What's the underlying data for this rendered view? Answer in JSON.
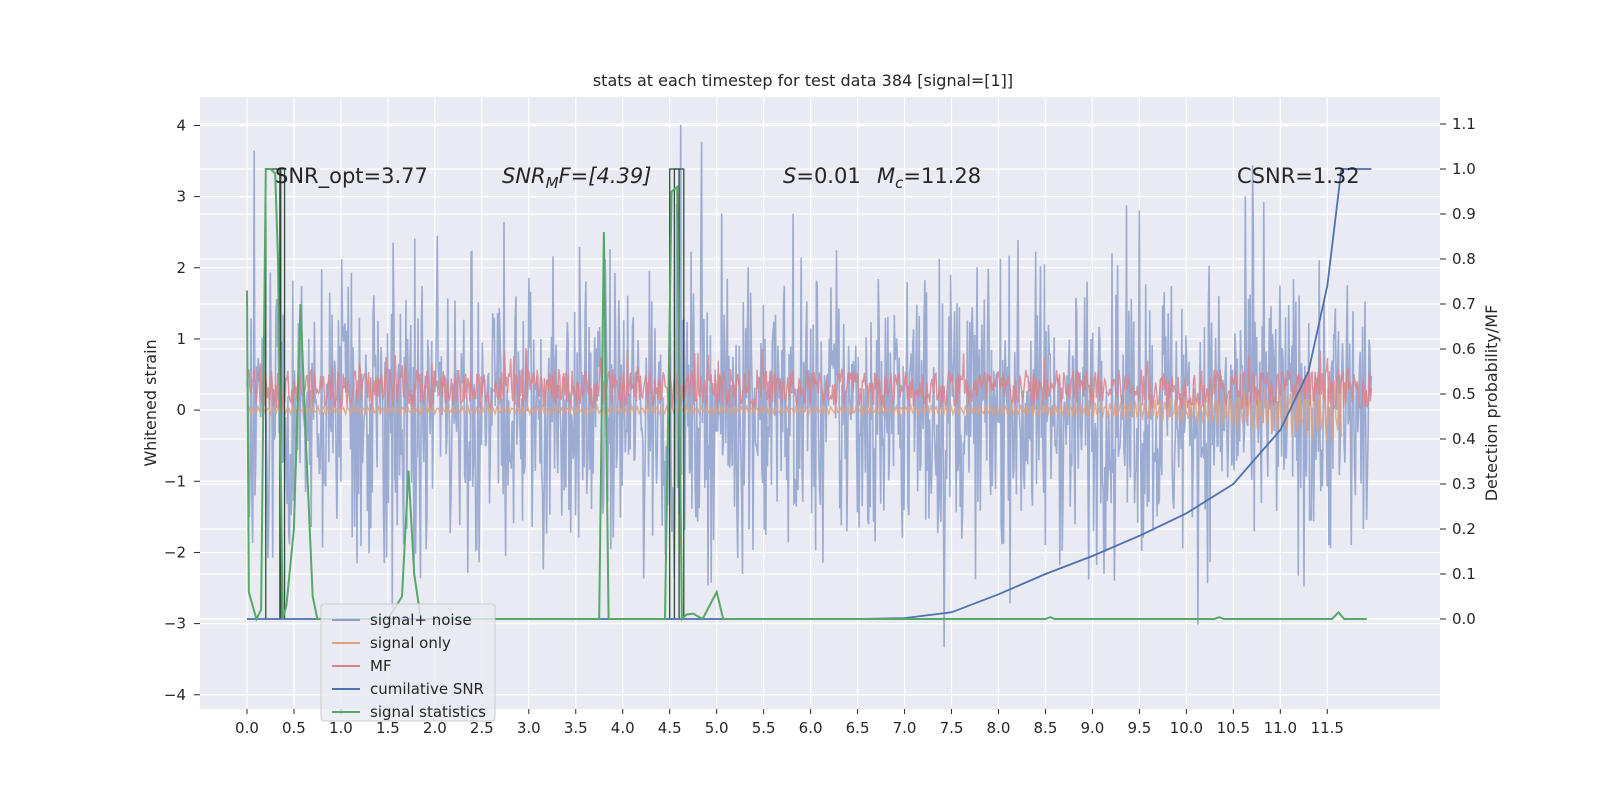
{
  "chart_data": {
    "type": "line",
    "title": "stats at each timestep for test data 384 [signal=[1]]",
    "xlabel": "",
    "ylabel": "Whitened strain",
    "ylabel_right": "Detection probability/MF",
    "xlim": [
      -0.5,
      12.7
    ],
    "ylim": [
      -4.2,
      4.4
    ],
    "ylim_right": [
      -0.2,
      1.16
    ],
    "x_ticks": [
      "0.0",
      "0.5",
      "1.0",
      "1.5",
      "2.0",
      "2.5",
      "3.0",
      "3.5",
      "4.0",
      "4.5",
      "5.0",
      "5.5",
      "6.0",
      "6.5",
      "7.0",
      "7.5",
      "8.0",
      "8.5",
      "9.0",
      "9.5",
      "10.0",
      "10.5",
      "11.0",
      "11.5"
    ],
    "y_ticks": [
      "4",
      "3",
      "2",
      "1",
      "0",
      "−1",
      "−2",
      "−3",
      "−4"
    ],
    "y_ticks_right": [
      "1.1",
      "1.0",
      "0.9",
      "0.8",
      "0.7",
      "0.6",
      "0.5",
      "0.4",
      "0.3",
      "0.2",
      "0.1",
      "0.0"
    ],
    "grid": true,
    "legend_position": "lower-left",
    "annotations": {
      "snr_opt": "SNR_opt=3.77",
      "snr_mf": "SNR",
      "snr_mf_sub": "M",
      "snr_mf_rest": "F=[4.39]",
      "s_var": "S",
      "s_val": "=0.01",
      "mc_var": "M",
      "mc_sub": "c",
      "mc_val": "=11.28",
      "csnr": "CSNR=1.32"
    },
    "series": [
      {
        "name": "signal+ noise",
        "color": "#8da0cb",
        "description_amplitude": 1.4,
        "x_range": [
          0.0,
          11.97
        ]
      },
      {
        "name": "signal only",
        "color": "#e0a080",
        "x_range": [
          0.0,
          11.65
        ]
      },
      {
        "name": "MF",
        "color": "#d9838c",
        "x_range": [
          0.0,
          11.97
        ]
      },
      {
        "name": "cumilative SNR",
        "color": "#4c72b0",
        "x": [
          0.0,
          6.5,
          7.0,
          7.5,
          8.0,
          8.5,
          9.0,
          9.5,
          10.0,
          10.5,
          11.0,
          11.3,
          11.5,
          11.65,
          11.97
        ],
        "y": [
          0.0,
          0.0,
          0.002,
          0.015,
          0.055,
          0.1,
          0.14,
          0.185,
          0.235,
          0.3,
          0.42,
          0.55,
          0.74,
          1.0,
          1.0
        ]
      },
      {
        "name": "signal statistics",
        "color": "#55a868",
        "x": [
          0.0,
          0.02,
          0.1,
          0.15,
          0.2,
          0.25,
          0.3,
          0.33,
          0.38,
          0.42,
          0.5,
          0.57,
          0.63,
          0.7,
          0.75,
          0.8,
          0.85,
          0.9,
          1.0,
          1.5,
          1.65,
          1.72,
          1.78,
          1.85,
          1.9,
          2.0,
          3.75,
          3.8,
          3.85,
          3.9,
          4.45,
          4.52,
          4.58,
          4.63,
          4.68,
          4.75,
          4.85,
          5.0,
          5.07,
          5.15,
          5.2,
          8.5,
          8.55,
          8.6,
          9.5,
          10.3,
          10.35,
          10.4,
          11.55,
          11.62,
          11.68,
          11.75,
          11.92
        ],
        "y": [
          0.73,
          0.06,
          0.0,
          0.02,
          1.0,
          1.0,
          0.99,
          0.8,
          0.0,
          0.03,
          0.2,
          0.7,
          0.38,
          0.05,
          0.0,
          0.0,
          0.0,
          0.0,
          0.0,
          0.0,
          0.05,
          0.33,
          0.1,
          0.0,
          0.0,
          0.0,
          0.0,
          0.86,
          0.0,
          0.0,
          0.0,
          0.95,
          0.96,
          0.0,
          0.01,
          0.012,
          0.0,
          0.06,
          0.0,
          0.0,
          0.0,
          0.0,
          0.004,
          0.0,
          0.0,
          0.0,
          0.004,
          0.0,
          0.0,
          0.015,
          0.0,
          0.0,
          0.0
        ]
      }
    ]
  }
}
